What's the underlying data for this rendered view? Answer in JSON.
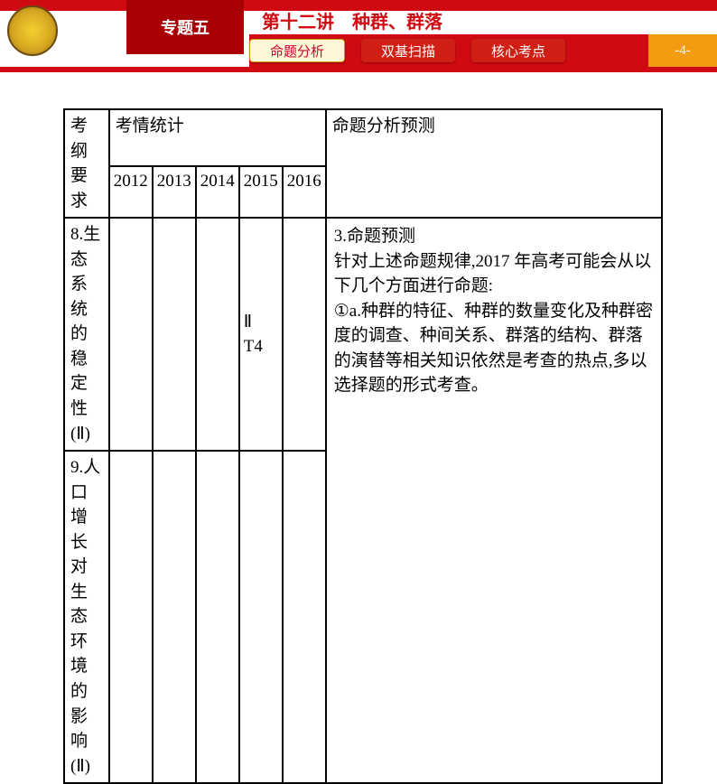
{
  "colors": {
    "red": "#cf0a12",
    "dark_red": "#a80005",
    "tab_inactive": "#d02015",
    "tab_active_bg": "#fff7d6",
    "tab_active_text": "#c03020",
    "page_badge": "#f39c12",
    "lecture_title": "#cf0a12",
    "logo_outer": "#8b6010",
    "logo_inner": "#f5d030"
  },
  "header": {
    "topic": "专题五",
    "lecture": "第十二讲　种群、群落",
    "page": "-4-",
    "tabs": [
      {
        "label": "命题分析",
        "active": true
      },
      {
        "label": "双基扫描",
        "active": false
      },
      {
        "label": "核心考点",
        "active": false
      }
    ]
  },
  "table": {
    "header": {
      "col1": "考纲要求",
      "col2": "考情统计",
      "col3": "命题分析预测",
      "years": [
        "2012",
        "2013",
        "2014",
        "2015",
        "2016"
      ]
    },
    "rows": [
      {
        "requirement": "8.生态\n 系统的\n稳定性\n(Ⅱ)",
        "cells": [
          "",
          "",
          "",
          "Ⅱ\nT4",
          ""
        ]
      },
      {
        "requirement": "9.人口\n增长对\n生态环\n境的影\n响(Ⅱ)",
        "cells": [
          "",
          "",
          "",
          "",
          ""
        ]
      }
    ],
    "prediction": "3.命题预测\n针对上述命题规律,2017 年高考可能会从以下几个方面进行命题:\n①a.种群的特征、种群的数量变化及种群密度的调查、种间关系、群落的结构、群落的演替等相关知识依然是考查的热点,多以选择题的形式考查。"
  }
}
